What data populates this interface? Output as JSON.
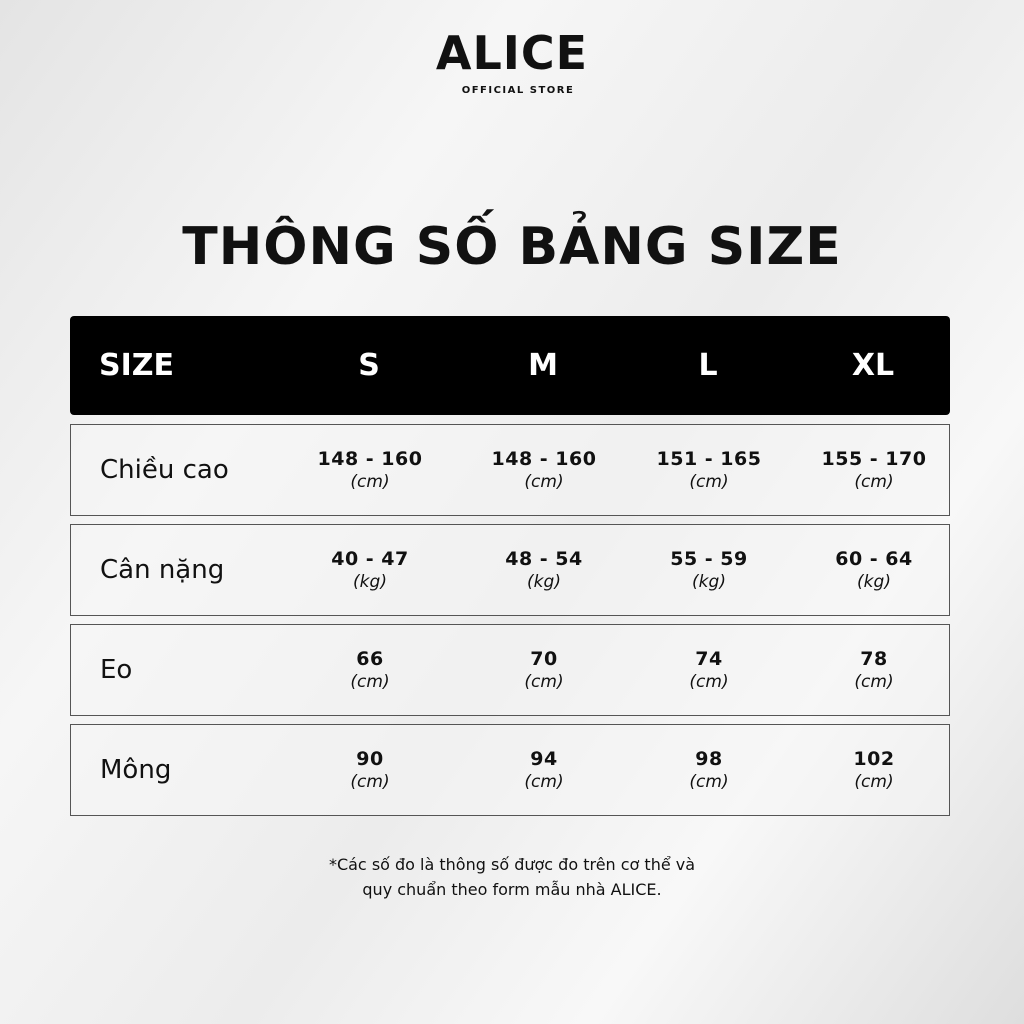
{
  "logo": {
    "brand": "ALICE",
    "subtitle": "OFFICIAL STORE"
  },
  "title": "THÔNG SỐ BẢNG SIZE",
  "table": {
    "header": [
      "SIZE",
      "S",
      "M",
      "L",
      "XL"
    ],
    "rows": [
      {
        "label": "Chiều cao",
        "values": [
          "148 - 160",
          "148 - 160",
          "151 - 165",
          "155 - 170"
        ],
        "unit": "(cm)"
      },
      {
        "label": "Cân nặng",
        "values": [
          "40 - 47",
          "48 - 54",
          "55 - 59",
          "60 - 64"
        ],
        "unit": "(kg)"
      },
      {
        "label": "Eo",
        "values": [
          "66",
          "70",
          "74",
          "78"
        ],
        "unit": "(cm)"
      },
      {
        "label": "Mông",
        "values": [
          "90",
          "94",
          "98",
          "102"
        ],
        "unit": "(cm)"
      }
    ]
  },
  "footnote": {
    "line1": "*Các số đo là thông số được đo trên cơ thể và",
    "line2": "quy chuẩn theo form mẫu nhà ALICE."
  }
}
